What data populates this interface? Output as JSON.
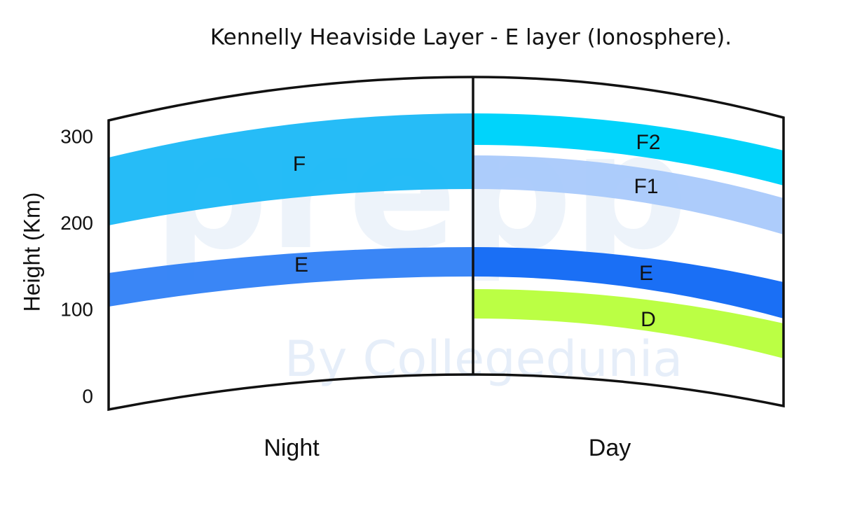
{
  "title": "Kennelly Heaviside Layer - E layer (Ionosphere).",
  "y_axis": {
    "label": "Height (Km)",
    "ticks": [
      0,
      100,
      200,
      300
    ]
  },
  "panels": [
    {
      "label": "Night",
      "layers": [
        "F",
        "E"
      ]
    },
    {
      "label": "Day",
      "layers": [
        "F2",
        "F1",
        "E",
        "D"
      ]
    }
  ],
  "watermark": [
    "prepp",
    "By Collegedunia"
  ]
}
